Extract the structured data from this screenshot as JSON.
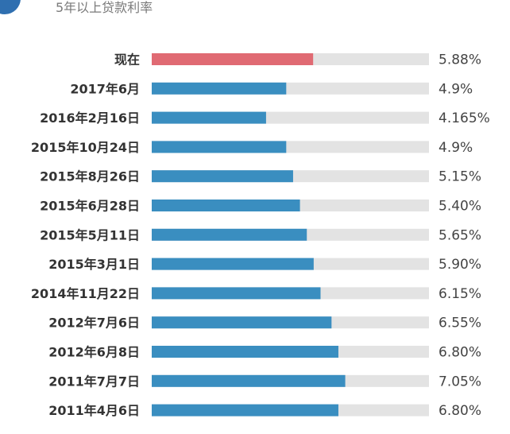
{
  "subtitle": "5年以上贷款利率",
  "colors": {
    "highlight": "#e06a73",
    "bar": "#3a8ec0",
    "track": "#e3e3e3"
  },
  "chart_data": {
    "type": "bar",
    "orientation": "horizontal",
    "title": "",
    "categories": [
      "现在",
      "2017年6月",
      "2016年2月16日",
      "2015年10月24日",
      "2015年8月26日",
      "2015年6月28日",
      "2015年5月11日",
      "2015年3月1日",
      "2014年11月22日",
      "2012年7月6日",
      "2012年6月8日",
      "2011年7月7日",
      "2011年4月6日"
    ],
    "values": [
      5.88,
      4.9,
      4.165,
      4.9,
      5.15,
      5.4,
      5.65,
      5.9,
      6.15,
      6.55,
      6.8,
      7.05,
      6.8
    ],
    "value_labels": [
      "5.88%",
      "4.9%",
      "4.165%",
      "4.9%",
      "5.15%",
      "5.40%",
      "5.65%",
      "5.90%",
      "6.15%",
      "6.55%",
      "6.80%",
      "7.05%",
      "6.80%"
    ],
    "highlight_index": 0
  }
}
